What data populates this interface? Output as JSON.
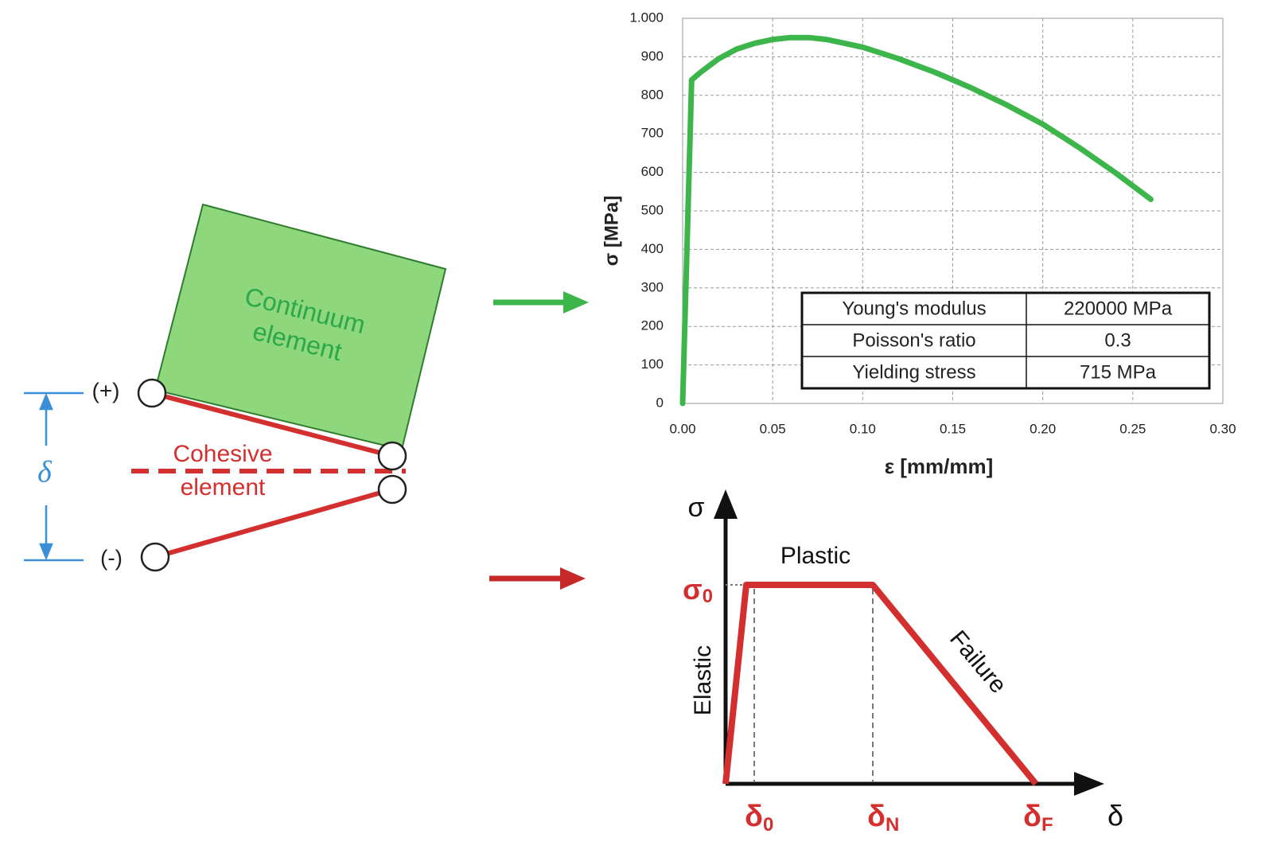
{
  "chart_data": {
    "type": "line",
    "x": [
      0,
      0.005,
      0.01,
      0.02,
      0.03,
      0.04,
      0.05,
      0.06,
      0.07,
      0.08,
      0.09,
      0.1,
      0.12,
      0.14,
      0.16,
      0.18,
      0.2,
      0.22,
      0.24,
      0.26
    ],
    "values": [
      0,
      840,
      860,
      895,
      920,
      935,
      945,
      950,
      950,
      945,
      935,
      925,
      895,
      860,
      820,
      775,
      725,
      665,
      600,
      530
    ],
    "color": "#3cb54a",
    "xlim": [
      0,
      0.3
    ],
    "xticks": [
      {
        "value": 0,
        "label": "0.00"
      },
      {
        "value": 0.05,
        "label": "0.05"
      },
      {
        "value": 0.1,
        "label": "0.10"
      },
      {
        "value": 0.15,
        "label": "0.15"
      },
      {
        "value": 0.2,
        "label": "0.20"
      },
      {
        "value": 0.25,
        "label": "0.25"
      },
      {
        "value": 0.3,
        "label": "0.30"
      }
    ],
    "ylim": [
      0,
      1000
    ],
    "yticks": [
      0,
      100,
      200,
      300,
      400,
      500,
      600,
      700,
      800,
      900,
      {
        "value": 1000,
        "label": "1.000"
      }
    ],
    "xlabel": "ε [mm/mm]",
    "ylabel": "σ [MPa]",
    "grid": true,
    "table": {
      "rows": [
        [
          "Young's modulus",
          "220000 MPa"
        ],
        [
          "Poisson's ratio",
          "0.3"
        ],
        [
          "Yielding stress",
          "715 MPa"
        ]
      ]
    }
  },
  "diagram": {
    "continuum": [
      "Continuum",
      "element"
    ],
    "cohesive": [
      "Cohesive",
      "element"
    ],
    "plus": "(+)",
    "minus": "(-)",
    "delta": "δ"
  },
  "schematic": {
    "y_axis": "σ",
    "x_axis": "δ",
    "plastic": "Plastic",
    "elastic": "Elastic",
    "failure": "Failure",
    "sigma0": {
      "symbol": "σ",
      "sub": "0"
    },
    "delta0": {
      "symbol": "δ",
      "sub": "0"
    },
    "deltaN": {
      "symbol": "δ",
      "sub": "N"
    },
    "deltaF": {
      "symbol": "δ",
      "sub": "F"
    }
  }
}
